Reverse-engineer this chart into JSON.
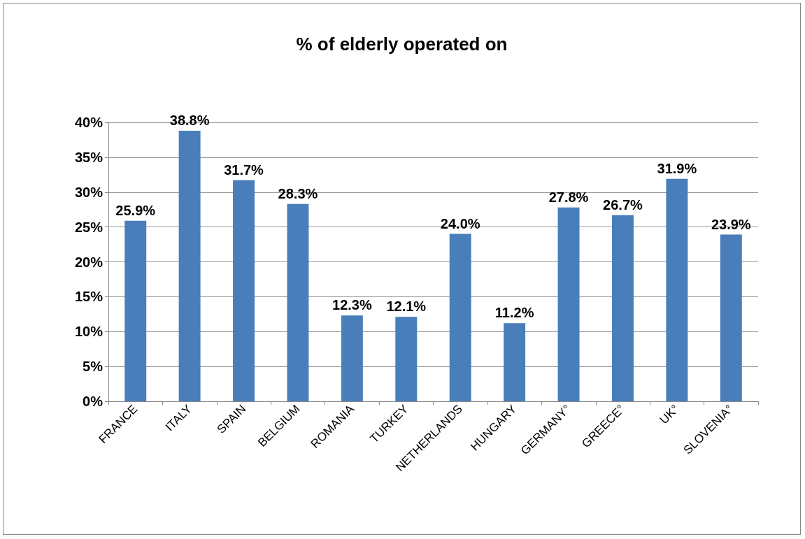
{
  "chart_data": {
    "type": "bar",
    "title": "% of elderly operated on",
    "categories": [
      "FRANCE",
      "ITALY",
      "SPAIN",
      "BELGIUM",
      "ROMANIA",
      "TURKEY",
      "NETHERLANDS",
      "HUNGARY",
      "GERMANY°",
      "GREECE°",
      "UK°",
      "SLOVENIA°"
    ],
    "values": [
      25.9,
      38.8,
      31.7,
      28.3,
      12.3,
      12.1,
      24.0,
      11.2,
      27.8,
      26.7,
      31.9,
      23.9
    ],
    "value_labels": [
      "25.9%",
      "38.8%",
      "31.7%",
      "28.3%",
      "12.3%",
      "12.1%",
      "24.0%",
      "11.2%",
      "27.8%",
      "26.7%",
      "31.9%",
      "23.9%"
    ],
    "color": "#4a7ebb",
    "ylim": [
      0,
      40
    ],
    "yticks": [
      {
        "value": 0,
        "label": "0%"
      },
      {
        "value": 5,
        "label": "5%"
      },
      {
        "value": 10,
        "label": "10%"
      },
      {
        "value": 15,
        "label": "15%"
      },
      {
        "value": 20,
        "label": "20%"
      },
      {
        "value": 25,
        "label": "25%"
      },
      {
        "value": 30,
        "label": "30%"
      },
      {
        "value": 35,
        "label": "35%"
      },
      {
        "value": 40,
        "label": "40%"
      }
    ],
    "grid": "y"
  }
}
